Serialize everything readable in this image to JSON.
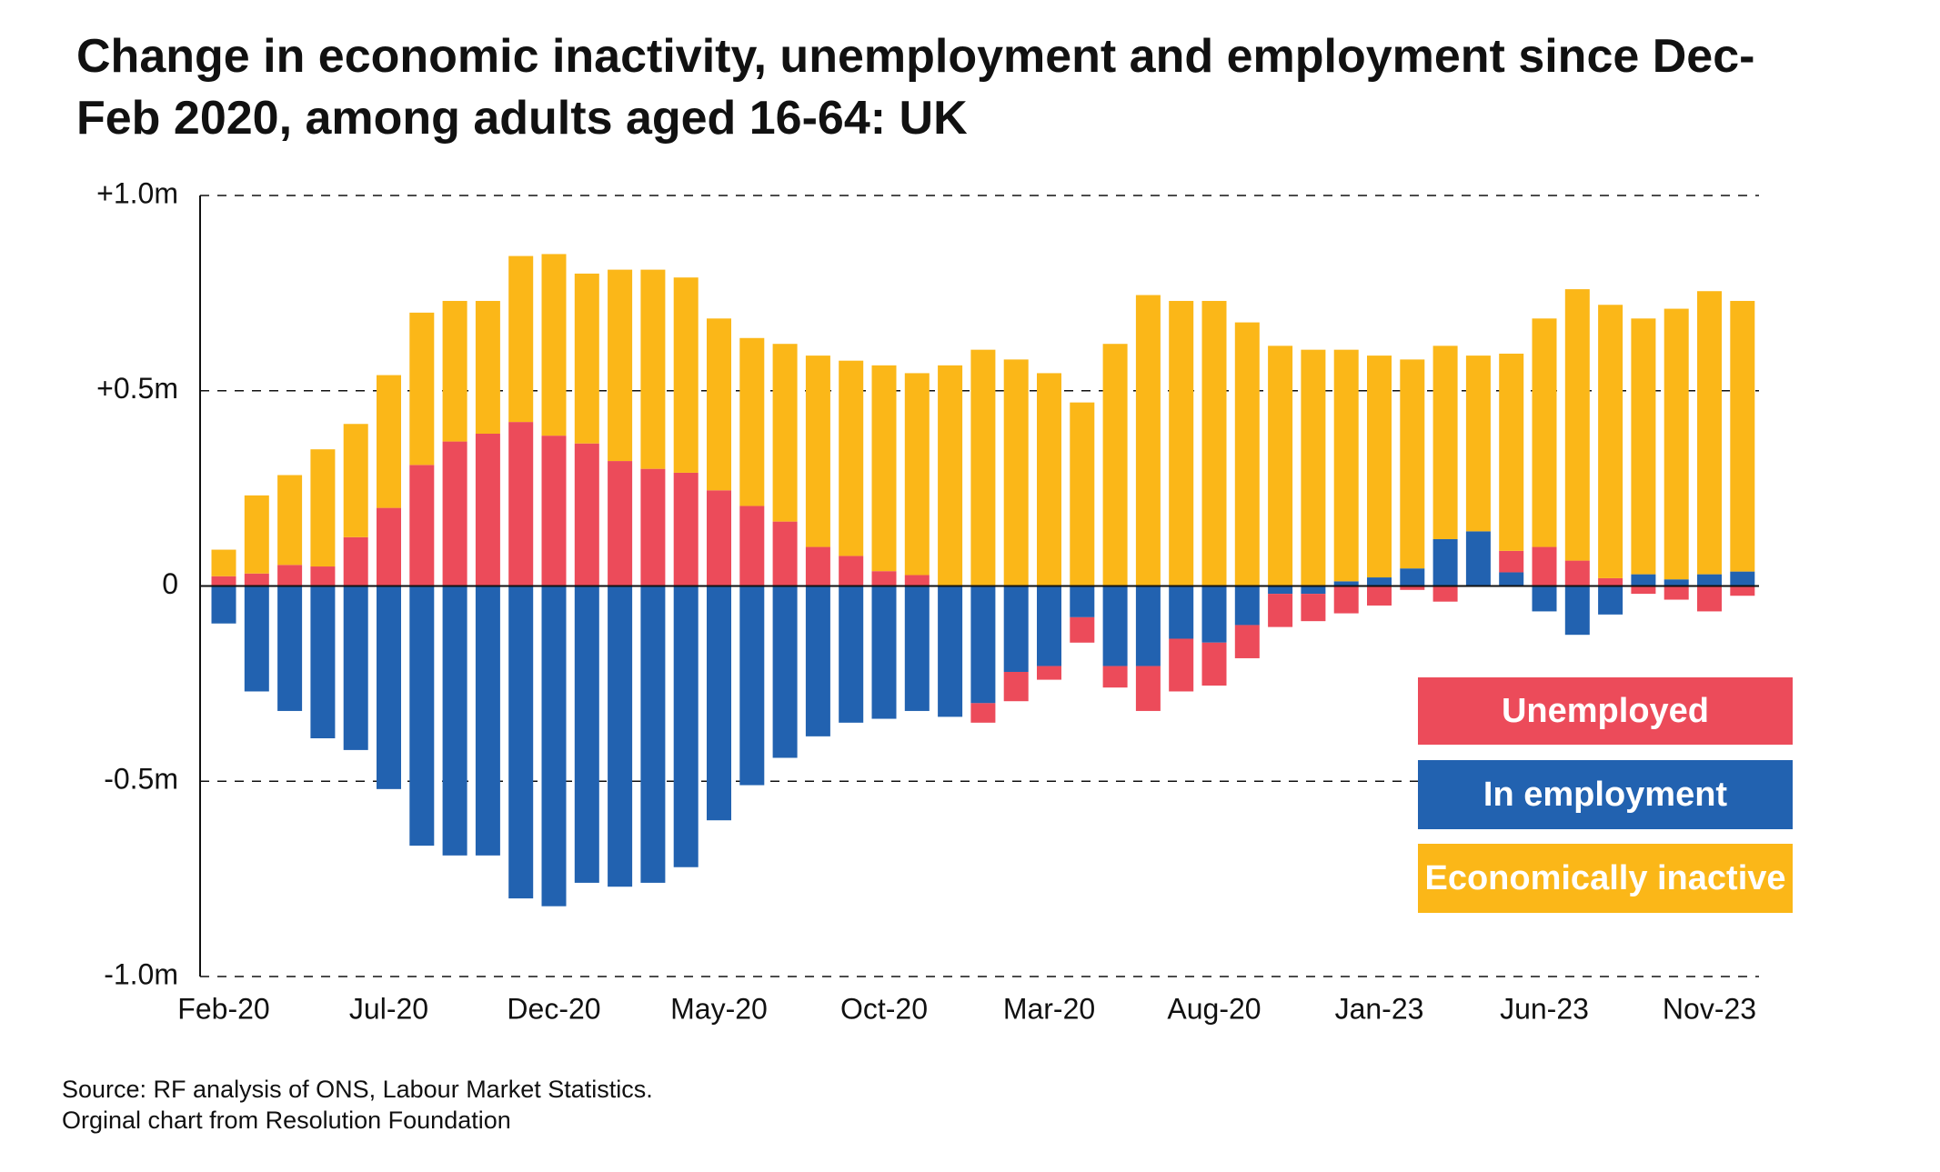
{
  "chart_data": {
    "type": "bar",
    "stacked": true,
    "title": "Change in economic inactivity, unemployment and employment since Dec-Feb 2020, among adults aged 16-64: UK",
    "source": "Source: RF analysis of ONS, Labour Market Statistics.",
    "credit": "Orginal chart from Resolution Foundation",
    "categories": [
      "Feb-20",
      null,
      null,
      null,
      null,
      "Jul-20",
      null,
      null,
      null,
      null,
      "Dec-20",
      null,
      null,
      null,
      null,
      "May-20",
      null,
      null,
      null,
      null,
      "Oct-20",
      null,
      null,
      null,
      null,
      "Mar-20",
      null,
      null,
      null,
      null,
      "Aug-20",
      null,
      null,
      null,
      null,
      "Jan-23",
      null,
      null,
      null,
      null,
      "Jun-23",
      null,
      null,
      null,
      null,
      "Nov-23",
      null
    ],
    "ylim": [
      -1.0,
      1.0
    ],
    "yticks": [
      {
        "value": 1.0,
        "label": "+1.0m"
      },
      {
        "value": 0.5,
        "label": "+0.5m"
      },
      0,
      {
        "value": -0.5,
        "label": "-0.5m"
      },
      {
        "value": -1.0,
        "label": "-1.0m"
      }
    ],
    "grid": true,
    "legend": "lower right",
    "series": [
      {
        "name": "In employment",
        "color": "#2262b0",
        "values": [
          -0.096,
          -0.27,
          -0.32,
          -0.39,
          -0.42,
          -0.52,
          -0.665,
          -0.69,
          -0.69,
          -0.8,
          -0.82,
          -0.76,
          -0.77,
          -0.76,
          -0.72,
          -0.6,
          -0.51,
          -0.44,
          -0.385,
          -0.35,
          -0.34,
          -0.32,
          -0.335,
          -0.3,
          -0.22,
          -0.205,
          -0.08,
          -0.205,
          -0.205,
          -0.135,
          -0.145,
          -0.1,
          -0.02,
          -0.02,
          0.012,
          0.022,
          0.045,
          0.12,
          0.14,
          0.035,
          -0.065,
          -0.125,
          -0.073,
          0.03,
          0.017,
          0.03,
          0.037
        ]
      },
      {
        "name": "Unemployed",
        "color": "#ec4b5a",
        "values": [
          0.025,
          0.032,
          0.054,
          0.05,
          0.125,
          0.2,
          0.31,
          0.37,
          0.39,
          0.42,
          0.385,
          0.365,
          0.32,
          0.3,
          0.29,
          0.245,
          0.205,
          0.165,
          0.1,
          0.077,
          0.038,
          0.028,
          0,
          -0.05,
          -0.075,
          -0.035,
          -0.065,
          -0.055,
          -0.115,
          -0.135,
          -0.11,
          -0.085,
          -0.085,
          -0.07,
          -0.07,
          -0.05,
          -0.01,
          -0.04,
          0,
          0.055,
          0.1,
          0.065,
          0.02,
          -0.02,
          -0.035,
          -0.065,
          -0.025
        ]
      },
      {
        "name": "Economically inactive",
        "color": "#fbb718",
        "values": [
          0.068,
          0.2,
          0.23,
          0.3,
          0.29,
          0.34,
          0.39,
          0.36,
          0.34,
          0.425,
          0.465,
          0.435,
          0.49,
          0.51,
          0.5,
          0.44,
          0.43,
          0.455,
          0.49,
          0.5,
          0.527,
          0.517,
          0.565,
          0.605,
          0.58,
          0.545,
          0.47,
          0.62,
          0.745,
          0.73,
          0.73,
          0.675,
          0.615,
          0.605,
          0.593,
          0.568,
          0.535,
          0.495,
          0.45,
          0.505,
          0.585,
          0.695,
          0.7,
          0.655,
          0.693,
          0.725,
          0.693
        ]
      }
    ]
  }
}
